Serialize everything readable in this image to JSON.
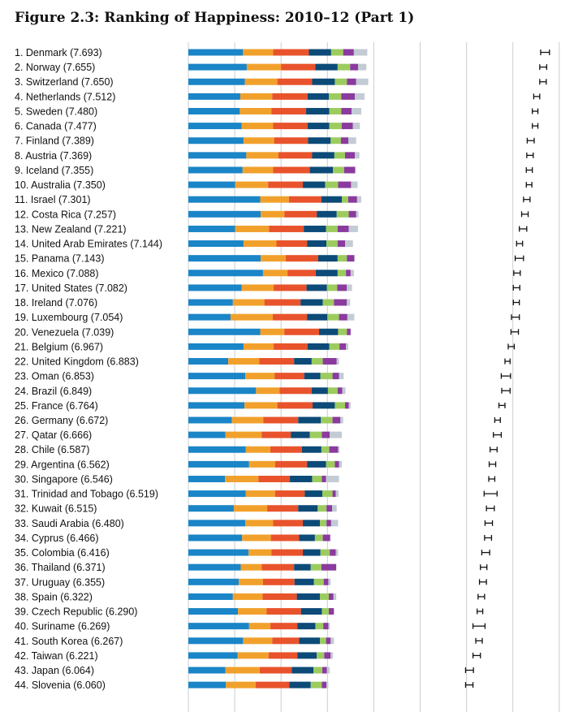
{
  "title": "Figure 2.3: Ranking of Happiness: 2010–12 (Part 1)",
  "colors": {
    "segments": [
      "#1a85c7",
      "#f1a12b",
      "#e8532c",
      "#0c4a78",
      "#9ccc5e",
      "#8b3a9e",
      "#c3cbd4"
    ],
    "error_bar": "#111111",
    "grid": "#c9ced3"
  },
  "chart_data": {
    "type": "bar",
    "orientation": "horizontal",
    "stacked": true,
    "grid": true,
    "categories": [
      "1. Denmark (7.693)",
      "2. Norway (7.655)",
      "3. Switzerland (7.650)",
      "4. Netherlands (7.512)",
      "5. Sweden (7.480)",
      "6. Canada (7.477)",
      "7. Finland (7.389)",
      "8. Austria (7.369)",
      "9. Iceland (7.355)",
      "10. Australia (7.350)",
      "11. Israel (7.301)",
      "12. Costa Rica (7.257)",
      "13. New Zealand (7.221)",
      "14. United Arab Emirates (7.144)",
      "15. Panama (7.143)",
      "16. Mexico (7.088)",
      "17. United States (7.082)",
      "18. Ireland (7.076)",
      "19. Luxembourg (7.054)",
      "20. Venezuela (7.039)",
      "21. Belgium (6.967)",
      "22. United Kingdom (6.883)",
      "23. Oman (6.853)",
      "24. Brazil (6.849)",
      "25. France (6.764)",
      "26. Germany (6.672)",
      "27. Qatar (6.666)",
      "28. Chile (6.587)",
      "29. Argentina (6.562)",
      "30. Singapore (6.546)",
      "31. Trinidad and Tobago (6.519)",
      "32. Kuwait (6.515)",
      "33. Saudi Arabia (6.480)",
      "34. Cyprus (6.466)",
      "35. Colombia (6.416)",
      "36. Thailand (6.371)",
      "37. Uruguay (6.355)",
      "38. Spain (6.322)",
      "39. Czech Republic (6.290)",
      "40. Suriname (6.269)",
      "41. South Korea (6.267)",
      "42. Taiwan (6.221)",
      "43. Japan (6.064)",
      "44. Slovenia (6.060)"
    ],
    "series": [
      {
        "values": [
          1.18,
          1.26,
          1.22,
          1.12,
          1.11,
          1.15,
          1.19,
          1.25,
          1.17,
          1.01,
          1.55,
          1.56,
          1.01,
          1.19,
          1.56,
          1.61,
          1.15,
          0.96,
          0.91,
          1.55,
          1.19,
          0.86,
          1.23,
          1.46,
          1.21,
          0.94,
          0.8,
          1.24,
          1.31,
          0.79,
          1.24,
          0.98,
          1.23,
          1.16,
          1.3,
          1.13,
          1.09,
          0.96,
          1.07,
          1.31,
          1.18,
          1.06,
          0.8,
          0.81
        ]
      },
      {
        "values": [
          0.65,
          0.74,
          0.7,
          0.69,
          0.68,
          0.68,
          0.66,
          0.69,
          0.66,
          0.71,
          0.62,
          0.51,
          0.73,
          0.71,
          0.54,
          0.53,
          0.69,
          0.68,
          0.91,
          0.52,
          0.65,
          0.67,
          0.63,
          0.51,
          0.71,
          0.68,
          0.78,
          0.53,
          0.56,
          0.72,
          0.63,
          0.72,
          0.6,
          0.62,
          0.49,
          0.45,
          0.52,
          0.64,
          0.62,
          0.46,
          0.63,
          0.67,
          0.74,
          0.64
        ]
      },
      {
        "values": [
          0.77,
          0.74,
          0.75,
          0.76,
          0.75,
          0.74,
          0.73,
          0.73,
          0.79,
          0.75,
          0.7,
          0.7,
          0.75,
          0.66,
          0.7,
          0.61,
          0.71,
          0.78,
          0.74,
          0.75,
          0.73,
          0.75,
          0.64,
          0.69,
          0.76,
          0.75,
          0.63,
          0.68,
          0.69,
          0.68,
          0.64,
          0.67,
          0.64,
          0.61,
          0.68,
          0.7,
          0.68,
          0.74,
          0.74,
          0.58,
          0.58,
          0.62,
          0.69,
          0.73
        ]
      },
      {
        "values": [
          0.48,
          0.48,
          0.49,
          0.46,
          0.5,
          0.47,
          0.49,
          0.48,
          0.5,
          0.48,
          0.44,
          0.43,
          0.48,
          0.42,
          0.42,
          0.47,
          0.44,
          0.48,
          0.44,
          0.41,
          0.47,
          0.38,
          0.35,
          0.35,
          0.48,
          0.49,
          0.41,
          0.42,
          0.41,
          0.48,
          0.38,
          0.42,
          0.37,
          0.34,
          0.38,
          0.36,
          0.42,
          0.5,
          0.45,
          0.39,
          0.45,
          0.42,
          0.47,
          0.46
        ]
      },
      {
        "values": [
          0.26,
          0.27,
          0.26,
          0.27,
          0.26,
          0.27,
          0.22,
          0.23,
          0.24,
          0.28,
          0.14,
          0.26,
          0.25,
          0.24,
          0.2,
          0.18,
          0.22,
          0.24,
          0.25,
          0.19,
          0.22,
          0.24,
          0.26,
          0.21,
          0.22,
          0.25,
          0.26,
          0.17,
          0.19,
          0.21,
          0.22,
          0.19,
          0.14,
          0.17,
          0.2,
          0.23,
          0.21,
          0.19,
          0.15,
          0.17,
          0.13,
          0.16,
          0.19,
          0.24
        ]
      },
      {
        "values": [
          0.23,
          0.17,
          0.2,
          0.29,
          0.22,
          0.24,
          0.16,
          0.21,
          0.24,
          0.28,
          0.19,
          0.16,
          0.24,
          0.16,
          0.16,
          0.1,
          0.21,
          0.28,
          0.18,
          0.08,
          0.14,
          0.3,
          0.14,
          0.1,
          0.08,
          0.17,
          0.17,
          0.19,
          0.09,
          0.09,
          0.07,
          0.12,
          0.1,
          0.16,
          0.13,
          0.32,
          0.1,
          0.1,
          0.11,
          0.11,
          0.1,
          0.14,
          0.1,
          0.1
        ]
      },
      {
        "values": [
          0.29,
          0.18,
          0.26,
          0.21,
          0.21,
          0.15,
          0.17,
          0.1,
          0.0,
          0.14,
          0.09,
          0.05,
          0.2,
          0.17,
          0.01,
          0.07,
          0.11,
          0.07,
          0.15,
          0.01,
          0.05,
          0.05,
          0.1,
          0.07,
          0.04,
          0.06,
          0.26,
          0.03,
          0.06,
          0.28,
          0.06,
          0.1,
          0.15,
          0.0,
          0.05,
          0.0,
          0.05,
          0.06,
          0.0,
          0.03,
          0.07,
          0.05,
          0.06,
          0.04
        ]
      }
    ],
    "error_bars": [
      [
        7.6,
        7.79
      ],
      [
        7.58,
        7.73
      ],
      [
        7.58,
        7.72
      ],
      [
        7.45,
        7.58
      ],
      [
        7.42,
        7.54
      ],
      [
        7.42,
        7.54
      ],
      [
        7.31,
        7.46
      ],
      [
        7.3,
        7.44
      ],
      [
        7.29,
        7.42
      ],
      [
        7.29,
        7.41
      ],
      [
        7.23,
        7.37
      ],
      [
        7.19,
        7.33
      ],
      [
        7.14,
        7.3
      ],
      [
        7.08,
        7.21
      ],
      [
        7.05,
        7.23
      ],
      [
        7.02,
        7.16
      ],
      [
        7.01,
        7.15
      ],
      [
        7.01,
        7.14
      ],
      [
        6.97,
        7.14
      ],
      [
        6.96,
        7.12
      ],
      [
        6.9,
        7.03
      ],
      [
        6.83,
        6.94
      ],
      [
        6.75,
        6.95
      ],
      [
        6.76,
        6.94
      ],
      [
        6.7,
        6.83
      ],
      [
        6.61,
        6.73
      ],
      [
        6.58,
        6.75
      ],
      [
        6.51,
        6.66
      ],
      [
        6.49,
        6.63
      ],
      [
        6.48,
        6.61
      ],
      [
        6.38,
        6.66
      ],
      [
        6.43,
        6.6
      ],
      [
        6.4,
        6.56
      ],
      [
        6.39,
        6.54
      ],
      [
        6.33,
        6.5
      ],
      [
        6.3,
        6.44
      ],
      [
        6.28,
        6.43
      ],
      [
        6.25,
        6.39
      ],
      [
        6.23,
        6.35
      ],
      [
        6.14,
        6.4
      ],
      [
        6.2,
        6.34
      ],
      [
        6.14,
        6.3
      ],
      [
        5.98,
        6.15
      ],
      [
        5.98,
        6.14
      ]
    ],
    "xlim": [
      0,
      8
    ],
    "ylabel": "",
    "xlabel": ""
  }
}
